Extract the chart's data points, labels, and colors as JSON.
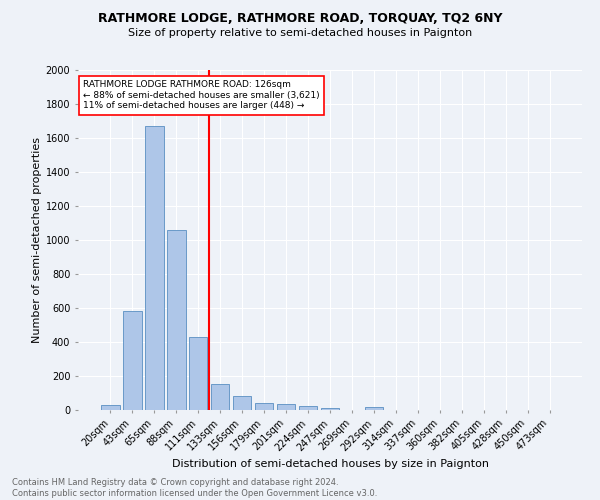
{
  "title": "RATHMORE LODGE, RATHMORE ROAD, TORQUAY, TQ2 6NY",
  "subtitle": "Size of property relative to semi-detached houses in Paignton",
  "xlabel": "Distribution of semi-detached houses by size in Paignton",
  "ylabel": "Number of semi-detached properties",
  "footnote1": "Contains HM Land Registry data © Crown copyright and database right 2024.",
  "footnote2": "Contains public sector information licensed under the Open Government Licence v3.0.",
  "bar_labels": [
    "20sqm",
    "43sqm",
    "65sqm",
    "88sqm",
    "111sqm",
    "133sqm",
    "156sqm",
    "179sqm",
    "201sqm",
    "224sqm",
    "247sqm",
    "269sqm",
    "292sqm",
    "314sqm",
    "337sqm",
    "360sqm",
    "382sqm",
    "405sqm",
    "428sqm",
    "450sqm",
    "473sqm"
  ],
  "bar_values": [
    30,
    580,
    1670,
    1060,
    430,
    155,
    85,
    40,
    35,
    25,
    10,
    0,
    15,
    0,
    0,
    0,
    0,
    0,
    0,
    0,
    0
  ],
  "bar_color": "#aec6e8",
  "bar_edge_color": "#5a8fc2",
  "vline_x": 4.5,
  "vline_color": "red",
  "annotation_text": "RATHMORE LODGE RATHMORE ROAD: 126sqm\n← 88% of semi-detached houses are smaller (3,621)\n11% of semi-detached houses are larger (448) →",
  "annotation_box_color": "white",
  "annotation_box_edge": "red",
  "ylim": [
    0,
    2000
  ],
  "yticks": [
    0,
    200,
    400,
    600,
    800,
    1000,
    1200,
    1400,
    1600,
    1800,
    2000
  ],
  "bg_color": "#eef2f8",
  "grid_color": "white",
  "title_fontsize": 9,
  "subtitle_fontsize": 8,
  "footnote_fontsize": 6,
  "axis_fontsize": 7,
  "ylabel_fontsize": 8,
  "xlabel_fontsize": 8
}
